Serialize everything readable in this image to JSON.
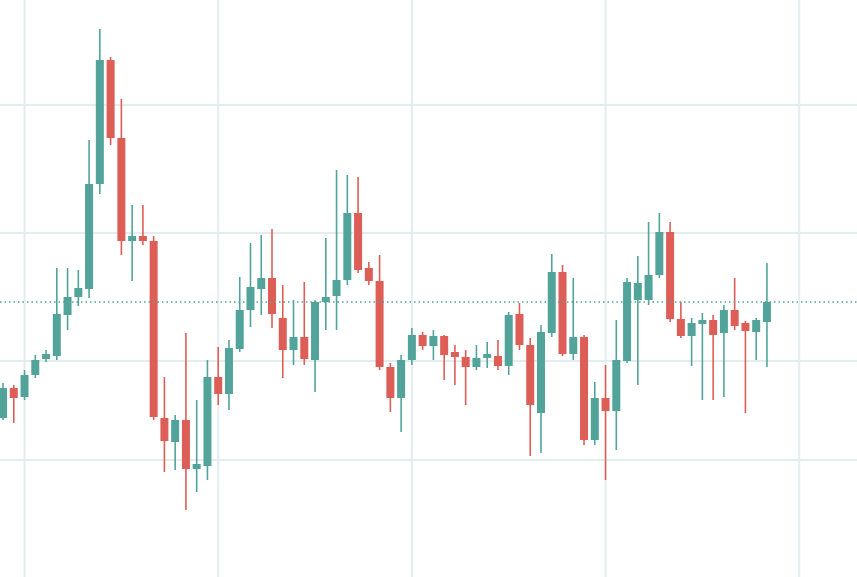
{
  "chart_data": {
    "type": "candlestick",
    "xlim": [
      -0.28,
      79.37
    ],
    "xticks": [
      2,
      20,
      38,
      56,
      74
    ],
    "ylim": [
      0,
      577
    ],
    "yticks": [
      117,
      216,
      344,
      472
    ],
    "grid": true,
    "up_color": "#52a49a",
    "down_color": "#dd5e56",
    "grid_color": "#e3ecef",
    "last_price": 275,
    "open": [
      159,
      189,
      180,
      202,
      218,
      221,
      262,
      280,
      288,
      393,
      517,
      439,
      336,
      341,
      336,
      159,
      135,
      157,
      108,
      111,
      200,
      183,
      228,
      267,
      288,
      299,
      259,
      227,
      240,
      217,
      275,
      281,
      297,
      364,
      309,
      296,
      210,
      179,
      217,
      242,
      231,
      241,
      225,
      220,
      210,
      219,
      221,
      211,
      263,
      232,
      164,
      244,
      305,
      223,
      240,
      137,
      179,
      166,
      216,
      277,
      277,
      302,
      345,
      258,
      241,
      253,
      257,
      244,
      267,
      254,
      245,
      255
    ],
    "high": [
      194,
      192,
      207,
      222,
      227,
      309,
      309,
      307,
      437,
      548,
      520,
      478,
      372,
      372,
      341,
      200,
      162,
      244,
      177,
      217,
      230,
      237,
      300,
      334,
      342,
      348,
      292,
      277,
      295,
      277,
      339,
      407,
      402,
      400,
      315,
      322,
      214,
      222,
      249,
      245,
      247,
      242,
      232,
      227,
      232,
      235,
      237,
      265,
      274,
      239,
      252,
      323,
      312,
      299,
      242,
      195,
      212,
      257,
      299,
      321,
      355,
      364,
      355,
      275,
      259,
      264,
      262,
      272,
      299,
      256,
      259,
      314
    ],
    "low": [
      157,
      154,
      177,
      199,
      215,
      217,
      247,
      271,
      279,
      383,
      432,
      322,
      296,
      332,
      157,
      105,
      107,
      67,
      85,
      97,
      172,
      167,
      225,
      250,
      262,
      249,
      199,
      212,
      212,
      185,
      247,
      247,
      292,
      304,
      292,
      207,
      165,
      145,
      212,
      227,
      217,
      197,
      192,
      172,
      207,
      209,
      207,
      202,
      227,
      121,
      124,
      240,
      221,
      217,
      132,
      132,
      97,
      127,
      214,
      192,
      272,
      299,
      255,
      239,
      211,
      177,
      177,
      180,
      247,
      164,
      217,
      210
    ],
    "close": [
      189,
      179,
      202,
      217,
      223,
      263,
      280,
      289,
      393,
      517,
      439,
      336,
      341,
      336,
      160,
      136,
      157,
      108,
      113,
      200,
      183,
      229,
      267,
      290,
      299,
      263,
      227,
      240,
      218,
      275,
      280,
      297,
      364,
      307,
      296,
      210,
      179,
      217,
      242,
      231,
      241,
      222,
      220,
      210,
      219,
      223,
      211,
      262,
      232,
      172,
      245,
      305,
      223,
      240,
      137,
      179,
      166,
      217,
      295,
      294,
      302,
      345,
      258,
      241,
      254,
      257,
      242,
      267,
      251,
      246,
      257,
      275
    ]
  }
}
